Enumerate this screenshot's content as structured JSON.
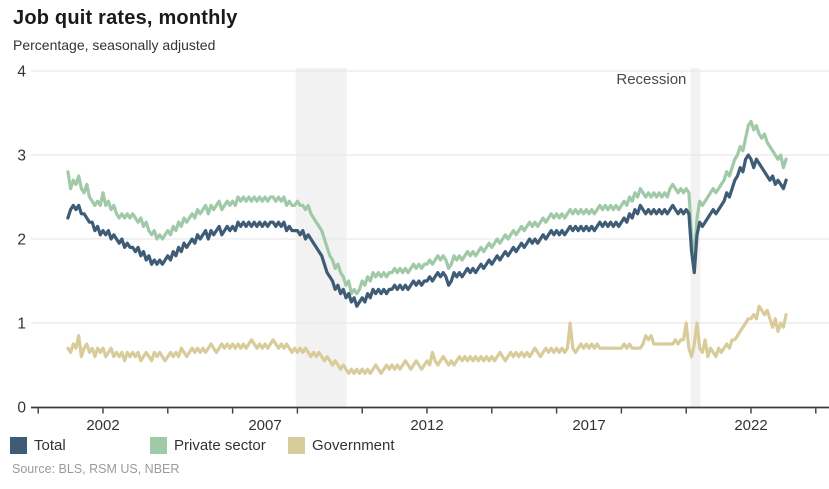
{
  "header": {
    "title": "Job quit rates, monthly",
    "subtitle": "Percentage, seasonally adjusted"
  },
  "footer": {
    "source": "Source: BLS, RSM US, NBER"
  },
  "legend": {
    "items": [
      {
        "label": "Total",
        "color": "#3e5c76"
      },
      {
        "label": "Private sector",
        "color": "#9fc9a7"
      },
      {
        "label": "Government",
        "color": "#d9cc9b"
      }
    ]
  },
  "chart_data": {
    "type": "line",
    "title": "Job quit rates, monthly",
    "subtitle": "Percentage, seasonally adjusted",
    "xlabel": "",
    "ylabel": "Percentage, seasonally adjusted",
    "ylim": [
      0,
      4
    ],
    "yticks": [
      0,
      1,
      2,
      3,
      4
    ],
    "x_tick_label_years": [
      2002,
      2007,
      2012,
      2017,
      2022
    ],
    "minor_tick_years": [
      2000,
      2002,
      2004,
      2006,
      2008,
      2010,
      2012,
      2014,
      2016,
      2018,
      2020,
      2022,
      2024
    ],
    "grid": true,
    "legend_position": "bottom",
    "annotation": {
      "label": "Recession"
    },
    "recession_bands_years": [
      [
        2007.95,
        2009.52
      ],
      [
        2020.13,
        2020.44
      ]
    ],
    "x_start_year": 2000,
    "x_start_month": 12,
    "frequency": "monthly",
    "x_end_label": "Feb 2023",
    "series": [
      {
        "name": "Total",
        "color": "#3e5c76",
        "values": [
          2.25,
          2.35,
          2.4,
          2.35,
          2.4,
          2.3,
          2.3,
          2.25,
          2.2,
          2.2,
          2.1,
          2.15,
          2.05,
          2.1,
          2.05,
          2.1,
          2.0,
          2.05,
          2.0,
          1.95,
          2.0,
          1.9,
          1.95,
          1.9,
          1.9,
          1.85,
          1.9,
          1.8,
          1.85,
          1.75,
          1.8,
          1.7,
          1.75,
          1.7,
          1.75,
          1.7,
          1.75,
          1.8,
          1.75,
          1.85,
          1.8,
          1.9,
          1.85,
          1.95,
          1.9,
          1.95,
          2.0,
          1.95,
          2.05,
          2.0,
          2.05,
          2.1,
          2.0,
          2.1,
          2.05,
          2.1,
          2.15,
          2.05,
          2.1,
          2.15,
          2.1,
          2.15,
          2.1,
          2.2,
          2.15,
          2.2,
          2.15,
          2.2,
          2.15,
          2.2,
          2.15,
          2.2,
          2.15,
          2.2,
          2.15,
          2.2,
          2.2,
          2.15,
          2.2,
          2.15,
          2.2,
          2.1,
          2.15,
          2.1,
          2.1,
          2.1,
          2.05,
          2.1,
          2.0,
          2.05,
          2.0,
          1.95,
          1.9,
          1.85,
          1.8,
          1.7,
          1.6,
          1.55,
          1.5,
          1.4,
          1.45,
          1.35,
          1.4,
          1.3,
          1.35,
          1.25,
          1.3,
          1.2,
          1.25,
          1.3,
          1.25,
          1.35,
          1.3,
          1.4,
          1.35,
          1.4,
          1.35,
          1.4,
          1.35,
          1.4,
          1.4,
          1.45,
          1.4,
          1.45,
          1.4,
          1.45,
          1.4,
          1.45,
          1.5,
          1.45,
          1.5,
          1.45,
          1.5,
          1.5,
          1.55,
          1.5,
          1.55,
          1.6,
          1.55,
          1.6,
          1.55,
          1.45,
          1.5,
          1.6,
          1.55,
          1.6,
          1.55,
          1.6,
          1.65,
          1.6,
          1.65,
          1.6,
          1.65,
          1.7,
          1.65,
          1.7,
          1.75,
          1.7,
          1.75,
          1.8,
          1.75,
          1.8,
          1.85,
          1.8,
          1.85,
          1.9,
          1.85,
          1.9,
          1.95,
          1.9,
          1.95,
          2.0,
          1.95,
          2.0,
          1.95,
          2.0,
          2.05,
          2.0,
          2.05,
          2.1,
          2.05,
          2.1,
          2.05,
          2.1,
          2.05,
          2.1,
          2.15,
          2.1,
          2.15,
          2.1,
          2.15,
          2.1,
          2.15,
          2.1,
          2.15,
          2.1,
          2.15,
          2.2,
          2.15,
          2.2,
          2.15,
          2.2,
          2.15,
          2.2,
          2.15,
          2.2,
          2.25,
          2.2,
          2.3,
          2.25,
          2.35,
          2.3,
          2.4,
          2.35,
          2.3,
          2.35,
          2.3,
          2.35,
          2.3,
          2.35,
          2.3,
          2.35,
          2.3,
          2.35,
          2.4,
          2.35,
          2.3,
          2.35,
          2.3,
          2.35,
          2.3,
          1.85,
          1.6,
          2.05,
          2.2,
          2.15,
          2.2,
          2.25,
          2.3,
          2.35,
          2.3,
          2.35,
          2.4,
          2.45,
          2.55,
          2.5,
          2.6,
          2.7,
          2.75,
          2.85,
          2.8,
          2.95,
          3.0,
          2.95,
          2.85,
          2.95,
          2.9,
          2.85,
          2.8,
          2.75,
          2.7,
          2.75,
          2.65,
          2.7,
          2.65,
          2.6,
          2.7
        ]
      },
      {
        "name": "Private sector",
        "color": "#9fc9a7",
        "values": [
          2.8,
          2.6,
          2.7,
          2.65,
          2.75,
          2.6,
          2.55,
          2.65,
          2.5,
          2.45,
          2.4,
          2.45,
          2.4,
          2.55,
          2.4,
          2.45,
          2.35,
          2.4,
          2.3,
          2.25,
          2.3,
          2.25,
          2.3,
          2.25,
          2.3,
          2.25,
          2.2,
          2.25,
          2.15,
          2.2,
          2.1,
          2.05,
          2.1,
          2.0,
          2.05,
          2.0,
          2.05,
          2.1,
          2.05,
          2.15,
          2.1,
          2.2,
          2.15,
          2.25,
          2.2,
          2.25,
          2.3,
          2.25,
          2.35,
          2.3,
          2.35,
          2.4,
          2.3,
          2.4,
          2.35,
          2.4,
          2.45,
          2.35,
          2.4,
          2.45,
          2.4,
          2.45,
          2.4,
          2.5,
          2.45,
          2.5,
          2.45,
          2.5,
          2.45,
          2.5,
          2.45,
          2.5,
          2.45,
          2.5,
          2.45,
          2.5,
          2.5,
          2.45,
          2.5,
          2.45,
          2.5,
          2.4,
          2.45,
          2.4,
          2.4,
          2.45,
          2.4,
          2.4,
          2.35,
          2.4,
          2.3,
          2.25,
          2.2,
          2.15,
          2.1,
          2.0,
          1.9,
          1.8,
          1.75,
          1.65,
          1.7,
          1.6,
          1.55,
          1.45,
          1.5,
          1.35,
          1.4,
          1.35,
          1.4,
          1.5,
          1.45,
          1.55,
          1.5,
          1.6,
          1.55,
          1.6,
          1.55,
          1.6,
          1.55,
          1.6,
          1.6,
          1.65,
          1.6,
          1.65,
          1.6,
          1.65,
          1.6,
          1.65,
          1.7,
          1.65,
          1.7,
          1.65,
          1.7,
          1.7,
          1.75,
          1.7,
          1.75,
          1.8,
          1.75,
          1.8,
          1.75,
          1.65,
          1.7,
          1.8,
          1.75,
          1.8,
          1.75,
          1.8,
          1.85,
          1.8,
          1.85,
          1.8,
          1.85,
          1.9,
          1.85,
          1.9,
          1.95,
          1.9,
          1.95,
          2.0,
          1.95,
          2.0,
          2.05,
          2.0,
          2.05,
          2.1,
          2.05,
          2.1,
          2.15,
          2.1,
          2.15,
          2.2,
          2.15,
          2.2,
          2.15,
          2.2,
          2.25,
          2.2,
          2.25,
          2.3,
          2.25,
          2.3,
          2.25,
          2.3,
          2.25,
          2.3,
          2.35,
          2.3,
          2.35,
          2.3,
          2.35,
          2.3,
          2.35,
          2.3,
          2.35,
          2.3,
          2.35,
          2.4,
          2.35,
          2.4,
          2.35,
          2.4,
          2.35,
          2.4,
          2.35,
          2.4,
          2.45,
          2.4,
          2.5,
          2.45,
          2.55,
          2.5,
          2.6,
          2.55,
          2.5,
          2.55,
          2.5,
          2.55,
          2.5,
          2.55,
          2.5,
          2.55,
          2.5,
          2.6,
          2.65,
          2.6,
          2.55,
          2.6,
          2.55,
          2.6,
          2.55,
          2.05,
          1.75,
          2.25,
          2.45,
          2.4,
          2.45,
          2.5,
          2.55,
          2.6,
          2.55,
          2.6,
          2.65,
          2.7,
          2.8,
          2.75,
          2.85,
          2.95,
          3.0,
          3.1,
          3.05,
          3.2,
          3.35,
          3.4,
          3.3,
          3.35,
          3.25,
          3.2,
          3.25,
          3.15,
          3.1,
          3.05,
          3.0,
          2.95,
          3.0,
          2.85,
          2.95
        ]
      },
      {
        "name": "Government",
        "color": "#d9cc9b",
        "values": [
          0.7,
          0.65,
          0.75,
          0.7,
          0.85,
          0.6,
          0.7,
          0.75,
          0.65,
          0.7,
          0.6,
          0.7,
          0.65,
          0.7,
          0.6,
          0.65,
          0.7,
          0.6,
          0.65,
          0.6,
          0.65,
          0.55,
          0.65,
          0.6,
          0.65,
          0.6,
          0.65,
          0.55,
          0.6,
          0.65,
          0.6,
          0.55,
          0.65,
          0.6,
          0.65,
          0.6,
          0.55,
          0.6,
          0.65,
          0.6,
          0.65,
          0.6,
          0.7,
          0.65,
          0.6,
          0.65,
          0.7,
          0.65,
          0.7,
          0.65,
          0.7,
          0.65,
          0.7,
          0.75,
          0.7,
          0.65,
          0.7,
          0.75,
          0.7,
          0.75,
          0.7,
          0.75,
          0.7,
          0.75,
          0.7,
          0.75,
          0.7,
          0.75,
          0.8,
          0.75,
          0.7,
          0.75,
          0.7,
          0.75,
          0.7,
          0.75,
          0.8,
          0.75,
          0.7,
          0.75,
          0.7,
          0.75,
          0.7,
          0.65,
          0.7,
          0.65,
          0.7,
          0.65,
          0.7,
          0.65,
          0.6,
          0.65,
          0.6,
          0.65,
          0.6,
          0.55,
          0.6,
          0.55,
          0.5,
          0.55,
          0.5,
          0.45,
          0.5,
          0.45,
          0.4,
          0.45,
          0.4,
          0.45,
          0.4,
          0.45,
          0.4,
          0.45,
          0.4,
          0.45,
          0.5,
          0.45,
          0.4,
          0.45,
          0.5,
          0.45,
          0.5,
          0.45,
          0.5,
          0.45,
          0.5,
          0.55,
          0.5,
          0.45,
          0.5,
          0.55,
          0.5,
          0.45,
          0.5,
          0.55,
          0.5,
          0.65,
          0.55,
          0.5,
          0.55,
          0.6,
          0.55,
          0.5,
          0.55,
          0.5,
          0.55,
          0.6,
          0.55,
          0.6,
          0.55,
          0.6,
          0.55,
          0.6,
          0.55,
          0.6,
          0.55,
          0.6,
          0.55,
          0.6,
          0.55,
          0.6,
          0.65,
          0.6,
          0.55,
          0.6,
          0.65,
          0.6,
          0.65,
          0.6,
          0.65,
          0.6,
          0.65,
          0.6,
          0.65,
          0.7,
          0.65,
          0.6,
          0.65,
          0.7,
          0.65,
          0.7,
          0.65,
          0.7,
          0.65,
          0.7,
          0.65,
          0.7,
          1.0,
          0.7,
          0.65,
          0.7,
          0.75,
          0.7,
          0.75,
          0.7,
          0.75,
          0.7,
          0.75,
          0.7,
          0.7,
          0.7,
          0.7,
          0.7,
          0.7,
          0.7,
          0.7,
          0.7,
          0.75,
          0.7,
          0.75,
          0.7,
          0.7,
          0.7,
          0.7,
          0.75,
          0.85,
          0.8,
          0.85,
          0.75,
          0.75,
          0.75,
          0.75,
          0.75,
          0.75,
          0.75,
          0.75,
          0.8,
          0.75,
          0.8,
          0.8,
          1.0,
          0.7,
          0.6,
          0.75,
          1.0,
          0.7,
          0.65,
          0.8,
          0.6,
          0.7,
          0.65,
          0.6,
          0.7,
          0.65,
          0.7,
          0.75,
          0.7,
          0.8,
          0.8,
          0.85,
          0.9,
          0.95,
          1.0,
          1.05,
          1.05,
          1.1,
          1.05,
          1.2,
          1.15,
          1.1,
          1.15,
          1.05,
          0.95,
          1.05,
          0.9,
          1.0,
          0.95,
          1.1
        ]
      }
    ]
  }
}
